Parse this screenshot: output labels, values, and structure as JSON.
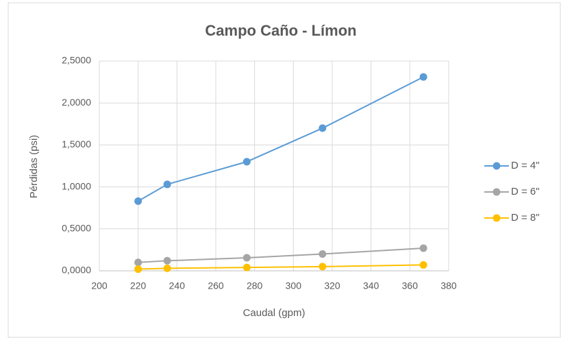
{
  "chart_data": {
    "type": "line",
    "title": "Campo Caño - Límon",
    "x_label": "Caudal (gpm)",
    "y_label": "Pérdidas (psi)",
    "x": [
      220,
      235,
      276,
      315,
      367
    ],
    "series": [
      {
        "name": "D = 4\"",
        "color": "#5b9bd5",
        "values": [
          0.83,
          1.03,
          1.3,
          1.7,
          2.31
        ]
      },
      {
        "name": "D = 6\"",
        "color": "#a5a5a5",
        "values": [
          0.1,
          0.12,
          0.155,
          0.2,
          0.27
        ]
      },
      {
        "name": "D = 8\"",
        "color": "#ffc000",
        "values": [
          0.02,
          0.03,
          0.04,
          0.05,
          0.07
        ]
      }
    ],
    "xlim": [
      200,
      380
    ],
    "xticks": [
      200,
      220,
      240,
      260,
      280,
      300,
      320,
      340,
      360,
      380
    ],
    "ylim": [
      0,
      2.5
    ],
    "yticks": [
      {
        "value": 0,
        "label": "0,0000"
      },
      {
        "value": 0.5,
        "label": "0,5000"
      },
      {
        "value": 1,
        "label": "1,0000"
      },
      {
        "value": 1.5,
        "label": "1,5000"
      },
      {
        "value": 2,
        "label": "2,0000"
      },
      {
        "value": 2.5,
        "label": "2,5000"
      }
    ],
    "grid": true,
    "legend": "right"
  }
}
